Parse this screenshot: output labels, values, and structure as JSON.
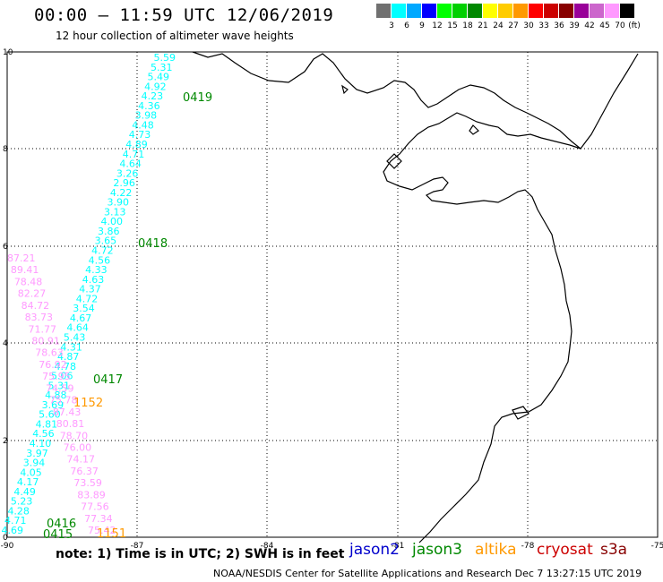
{
  "header": {
    "title": "00:00 – 11:59 UTC 12/06/2019",
    "subtitle": "12 hour collection of altimeter wave heights"
  },
  "legend": {
    "unit": "(ft)",
    "items": [
      {
        "label": "3",
        "color": "#707070"
      },
      {
        "label": "6",
        "color": "#00ffff"
      },
      {
        "label": "9",
        "color": "#00a8ff"
      },
      {
        "label": "12",
        "color": "#0000ff"
      },
      {
        "label": "15",
        "color": "#00ff00"
      },
      {
        "label": "18",
        "color": "#00d000"
      },
      {
        "label": "21",
        "color": "#008800"
      },
      {
        "label": "24",
        "color": "#ffff00"
      },
      {
        "label": "27",
        "color": "#ffcc00"
      },
      {
        "label": "30",
        "color": "#ff9900"
      },
      {
        "label": "33",
        "color": "#ff0000"
      },
      {
        "label": "36",
        "color": "#cc0000"
      },
      {
        "label": "39",
        "color": "#880000"
      },
      {
        "label": "42",
        "color": "#990099"
      },
      {
        "label": "45",
        "color": "#cc66cc"
      },
      {
        "label": "70",
        "color": "#ff99ff"
      },
      {
        "label": "",
        "color": "#000000"
      }
    ]
  },
  "axes": {
    "x_ticks": [
      "-90",
      "-87",
      "-84",
      "-81",
      "-78",
      "-75"
    ],
    "y_ticks": [
      "0",
      "2",
      "4",
      "6",
      "8",
      "10"
    ]
  },
  "tracks": {
    "jason3": {
      "color": "#00ffff",
      "values": [
        "5.59",
        "5.31",
        "5.49",
        "4.92",
        "4.23",
        "4.36",
        "3.98",
        "4.48",
        "4.73",
        "4.89",
        "4.71",
        "4.64",
        "3.26",
        "2.96",
        "4.22",
        "3.90",
        "3.13",
        "4.00",
        "3.86",
        "3.65",
        "4.72",
        "4.56",
        "4.33",
        "4.63",
        "4.37",
        "4.72",
        "3.54",
        "4.67",
        "4.64",
        "5.43",
        "4.31",
        "4.87",
        "4.78",
        "5.06",
        "5.31",
        "4.88",
        "3.69",
        "5.60",
        "4.81",
        "4.56",
        "4.10",
        "3.97",
        "3.94",
        "4.05",
        "4.17",
        "4.49",
        "5.23",
        "4.28",
        "4.71",
        "4.69"
      ]
    },
    "cryosat": {
      "color": "#ff99ff",
      "values": [
        "87.21",
        "89.41",
        "78.48",
        "82.27",
        "84.72",
        "83.73",
        "71.77",
        "80.91",
        "78.63",
        "76.92",
        "75.95",
        "74.59",
        "75.78",
        "87.43",
        "80.81",
        "78.70",
        "76.00",
        "74.17",
        "76.37",
        "73.59",
        "83.89",
        "77.56",
        "77.34",
        "75.42"
      ]
    },
    "time_labels": [
      {
        "text": "0419",
        "color": "#008800"
      },
      {
        "text": "0418",
        "color": "#008800"
      },
      {
        "text": "0417",
        "color": "#008800"
      },
      {
        "text": "1152",
        "color": "#ff9900"
      },
      {
        "text": "0416",
        "color": "#008800"
      },
      {
        "text": "0415",
        "color": "#008800"
      },
      {
        "text": "1151",
        "color": "#ff9900"
      }
    ]
  },
  "footer": {
    "note": "note: 1) Time is in UTC; 2) SWH is in feet",
    "satellites": [
      {
        "name": "jason2",
        "color": "#0000cc"
      },
      {
        "name": "jason3",
        "color": "#008800"
      },
      {
        "name": "altika",
        "color": "#ff9900"
      },
      {
        "name": "cryosat",
        "color": "#cc0000"
      },
      {
        "name": "s3a",
        "color": "#880000"
      }
    ],
    "credit": "NOAA/NESDIS Center for Satellite Applications and Research    Dec  7 13:27:15 UTC 2019"
  }
}
